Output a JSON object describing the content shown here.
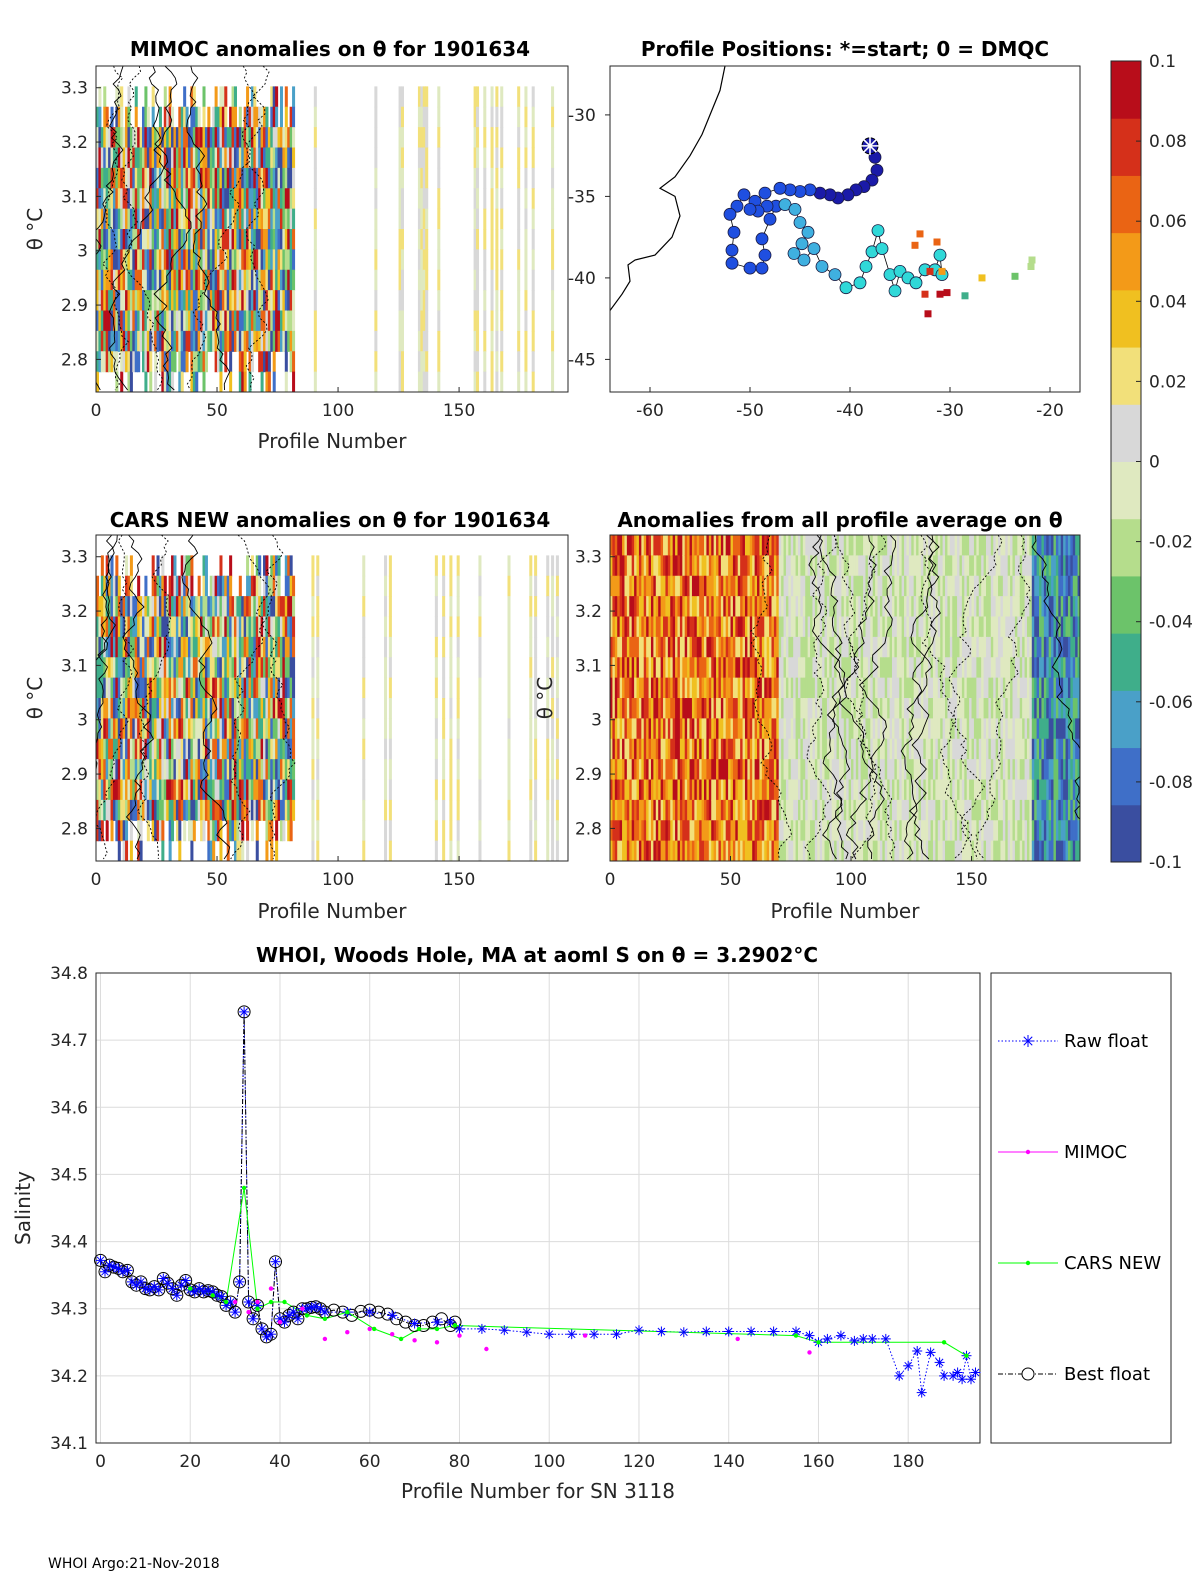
{
  "footer": "WHOI Argo:21-Nov-2018",
  "colors": {
    "raw": "#0000ff",
    "mimoc": "#ff00ff",
    "cars": "#00ff00",
    "best": "#000000",
    "ramp": [
      "#3a4ea0",
      "#3f6fc8",
      "#4aa0c8",
      "#3fae8a",
      "#6cc36a",
      "#b5dd8c",
      "#dfe9c0",
      "#d8d8d8",
      "#f2e07a",
      "#f0c020",
      "#f39a18",
      "#ea6414",
      "#d5301a",
      "#b80d1a"
    ]
  },
  "colorbar": {
    "ticks": [
      "0.1",
      "0.08",
      "0.06",
      "0.04",
      "0.02",
      "0",
      "-0.02",
      "-0.04",
      "-0.06",
      "-0.08",
      "-0.1"
    ]
  },
  "chart_data": [
    {
      "id": "mimoc",
      "type": "heatmap",
      "title": "MIMOC anomalies on θ  for 1901634",
      "xlabel": "Profile Number",
      "ylabel": "θ °C",
      "xlim": [
        0,
        195
      ],
      "ylim": [
        2.74,
        3.34
      ],
      "xticks": [
        "0",
        "50",
        "100",
        "150"
      ],
      "xtick_values": [
        0,
        50,
        100,
        150
      ],
      "yticks": [
        "3.3",
        "3.2",
        "3.1",
        "3",
        "2.9",
        "2.8"
      ],
      "ytick_values": [
        3.3,
        3.2,
        3.1,
        3.0,
        2.9,
        2.8
      ],
      "seed": 7
    },
    {
      "id": "positions",
      "type": "scatter",
      "title": "Profile Positions: *=start; 0 = DMQC",
      "xlim": [
        -64,
        -17
      ],
      "ylim": [
        -47,
        -27
      ],
      "xticks": [
        "-60",
        "-50",
        "-40",
        "-30",
        "-20"
      ],
      "xtick_values": [
        -60,
        -50,
        -40,
        -30,
        -20
      ],
      "yticks": [
        "-30",
        "-35",
        "-40",
        "-45"
      ],
      "ytick_values": [
        -30,
        -35,
        -40,
        -45
      ],
      "coast": [
        [
          -52.5,
          -27.0
        ],
        [
          -53.0,
          -28.5
        ],
        [
          -54.0,
          -30.0
        ],
        [
          -54.8,
          -31.2
        ],
        [
          -56.0,
          -32.5
        ],
        [
          -57.5,
          -33.8
        ],
        [
          -59.0,
          -34.5
        ],
        [
          -57.5,
          -35.0
        ],
        [
          -57.0,
          -36.2
        ],
        [
          -57.8,
          -37.5
        ],
        [
          -59.5,
          -38.6
        ],
        [
          -61.5,
          -38.9
        ],
        [
          -62.2,
          -39.2
        ],
        [
          -62.0,
          -40.2
        ],
        [
          -62.8,
          -41.0
        ],
        [
          -64.0,
          -42.0
        ]
      ],
      "start": [
        -38.0,
        -31.9
      ],
      "dmqc_track": [
        [
          -38.0,
          -31.9
        ],
        [
          -37.5,
          -32.6
        ],
        [
          -37.3,
          -33.4
        ],
        [
          -37.8,
          -34.0
        ],
        [
          -38.6,
          -34.4
        ],
        [
          -39.4,
          -34.6
        ],
        [
          -40.2,
          -34.9
        ],
        [
          -41.2,
          -35.1
        ],
        [
          -42.0,
          -34.9
        ],
        [
          -43.0,
          -34.8
        ],
        [
          -44.0,
          -34.6
        ],
        [
          -45.0,
          -34.7
        ],
        [
          -46.0,
          -34.6
        ],
        [
          -47.0,
          -34.5
        ],
        [
          -48.5,
          -34.8
        ],
        [
          -49.5,
          -35.3
        ],
        [
          -50.6,
          -34.9
        ],
        [
          -51.3,
          -35.6
        ],
        [
          -52.0,
          -36.1
        ],
        [
          -51.6,
          -37.2
        ],
        [
          -51.8,
          -38.3
        ],
        [
          -51.8,
          -39.1
        ],
        [
          -50.0,
          -39.4
        ],
        [
          -48.8,
          -39.4
        ],
        [
          -48.5,
          -38.6
        ],
        [
          -48.8,
          -37.6
        ],
        [
          -48.0,
          -36.4
        ],
        [
          -47.4,
          -35.6
        ],
        [
          -48.3,
          -35.6
        ],
        [
          -49.2,
          -35.9
        ],
        [
          -50.0,
          -35.8
        ]
      ],
      "dmqc_track2": [
        [
          -46.5,
          -35.5
        ],
        [
          -45.5,
          -35.8
        ],
        [
          -45.0,
          -36.6
        ],
        [
          -44.2,
          -37.2
        ],
        [
          -44.8,
          -37.9
        ],
        [
          -45.6,
          -38.5
        ],
        [
          -44.6,
          -38.9
        ],
        [
          -43.6,
          -38.2
        ],
        [
          -42.8,
          -39.3
        ],
        [
          -41.5,
          -39.8
        ],
        [
          -40.4,
          -40.6
        ],
        [
          -39.0,
          -40.3
        ],
        [
          -38.4,
          -39.3
        ],
        [
          -37.8,
          -38.4
        ],
        [
          -37.2,
          -37.1
        ],
        [
          -36.8,
          -38.2
        ],
        [
          -36.0,
          -39.8
        ],
        [
          -35.5,
          -40.8
        ],
        [
          -35.0,
          -39.6
        ],
        [
          -34.2,
          -40.0
        ],
        [
          -33.4,
          -40.3
        ],
        [
          -32.5,
          -39.5
        ],
        [
          -31.5,
          -39.5
        ],
        [
          -31.0,
          -38.6
        ],
        [
          -30.8,
          -39.8
        ]
      ],
      "raw_points": [
        [
          -33.0,
          -37.3
        ],
        [
          -31.3,
          -37.8
        ],
        [
          -33.5,
          -38.0
        ],
        [
          -32.0,
          -39.6
        ],
        [
          -30.8,
          -39.6
        ],
        [
          -32.5,
          -41.0
        ],
        [
          -31.0,
          -41.0
        ],
        [
          -30.3,
          -40.9
        ],
        [
          -32.2,
          -42.2
        ],
        [
          -28.5,
          -41.1
        ],
        [
          -26.8,
          -40.0
        ],
        [
          -23.5,
          -39.9
        ],
        [
          -21.9,
          -39.3
        ],
        [
          -21.8,
          -38.9
        ]
      ]
    },
    {
      "id": "cars",
      "type": "heatmap",
      "title": "CARS NEW anomalies on θ for 1901634",
      "xlabel": "Profile Number",
      "ylabel": "θ °C",
      "xlim": [
        0,
        195
      ],
      "ylim": [
        2.74,
        3.34
      ],
      "xticks": [
        "0",
        "50",
        "100",
        "150"
      ],
      "xtick_values": [
        0,
        50,
        100,
        150
      ],
      "yticks": [
        "3.3",
        "3.2",
        "3.1",
        "3",
        "2.9",
        "2.8"
      ],
      "ytick_values": [
        3.3,
        3.2,
        3.1,
        3.0,
        2.9,
        2.8
      ],
      "seed": 19
    },
    {
      "id": "allavg",
      "type": "heatmap",
      "title": "Anomalies from all profile average on θ",
      "xlabel": "Profile Number",
      "ylabel": "θ °C",
      "xlim": [
        0,
        195
      ],
      "ylim": [
        2.74,
        3.34
      ],
      "xticks": [
        "0",
        "50",
        "100",
        "150"
      ],
      "xtick_values": [
        0,
        50,
        100,
        150
      ],
      "yticks": [
        "3.3",
        "3.2",
        "3.1",
        "3",
        "2.9",
        "2.8"
      ],
      "ytick_values": [
        3.3,
        3.2,
        3.1,
        3.0,
        2.9,
        2.8
      ],
      "seed": 31
    },
    {
      "id": "salinity",
      "type": "line",
      "title": "WHOI, Woods Hole, MA at aoml S on θ = 3.2902°C",
      "xlabel": "Profile Number for SN 3118",
      "ylabel": "Salinity",
      "xlim": [
        -1,
        196
      ],
      "ylim": [
        34.1,
        34.8
      ],
      "xticks": [
        "0",
        "20",
        "40",
        "60",
        "80",
        "100",
        "120",
        "140",
        "160",
        "180"
      ],
      "xtick_values": [
        0,
        20,
        40,
        60,
        80,
        100,
        120,
        140,
        160,
        180
      ],
      "yticks": [
        "34.8",
        "34.7",
        "34.6",
        "34.5",
        "34.4",
        "34.3",
        "34.2",
        "34.1"
      ],
      "ytick_values": [
        34.8,
        34.7,
        34.6,
        34.5,
        34.4,
        34.3,
        34.2,
        34.1
      ],
      "legend": [
        "Raw float",
        "MIMOC",
        "CARS NEW",
        "Best float"
      ],
      "series": [
        {
          "name": "Raw float",
          "x": [
            0,
            1,
            2,
            3,
            4,
            5,
            6,
            7,
            8,
            9,
            10,
            11,
            12,
            13,
            14,
            15,
            16,
            17,
            18,
            19,
            20,
            21,
            22,
            23,
            24,
            25,
            26,
            27,
            28,
            29,
            30,
            31,
            32,
            33,
            34,
            35,
            36,
            37,
            38,
            39,
            40,
            41,
            42,
            43,
            44,
            45,
            46,
            47,
            48,
            49,
            50,
            55,
            60,
            65,
            70,
            75,
            78,
            80,
            85,
            90,
            95,
            100,
            105,
            110,
            115,
            120,
            125,
            130,
            135,
            140,
            145,
            150,
            155,
            158,
            160,
            162,
            165,
            168,
            170,
            172,
            175,
            178,
            180,
            182,
            183,
            185,
            187,
            188,
            190,
            191,
            192,
            193,
            194,
            195
          ],
          "values": [
            34.372,
            34.355,
            34.365,
            34.362,
            34.36,
            34.355,
            34.357,
            34.34,
            34.335,
            34.34,
            34.33,
            34.328,
            34.333,
            34.328,
            34.345,
            34.338,
            34.33,
            34.32,
            34.335,
            34.342,
            34.328,
            34.325,
            34.33,
            34.325,
            34.327,
            34.325,
            34.32,
            34.318,
            34.305,
            34.31,
            34.295,
            34.34,
            34.742,
            34.31,
            34.285,
            34.305,
            34.27,
            34.258,
            34.262,
            34.37,
            34.285,
            34.28,
            34.29,
            34.295,
            34.285,
            34.3,
            34.3,
            34.302,
            34.303,
            34.3,
            34.295,
            34.295,
            34.295,
            34.29,
            34.278,
            34.28,
            34.28,
            34.27,
            34.27,
            34.268,
            34.265,
            34.262,
            34.262,
            34.262,
            34.262,
            34.268,
            34.266,
            34.265,
            34.266,
            34.266,
            34.266,
            34.266,
            34.266,
            34.26,
            34.25,
            34.255,
            34.26,
            34.252,
            34.255,
            34.255,
            34.255,
            34.2,
            34.215,
            34.237,
            34.175,
            34.235,
            34.22,
            34.2,
            34.2,
            34.205,
            34.195,
            34.23,
            34.195,
            34.205
          ]
        },
        {
          "name": "MIMOC",
          "x": [
            25,
            30,
            33,
            35,
            38,
            40,
            45,
            50,
            55,
            60,
            65,
            70,
            75,
            80,
            86,
            108,
            142,
            158
          ],
          "values": [
            34.32,
            34.31,
            34.295,
            34.31,
            34.33,
            34.28,
            34.3,
            34.255,
            34.265,
            34.27,
            34.262,
            34.253,
            34.25,
            34.26,
            34.24,
            34.26,
            34.255,
            34.235
          ]
        },
        {
          "name": "CARS NEW",
          "x": [
            20,
            25,
            28,
            32,
            35,
            38,
            41,
            46,
            50,
            55,
            61,
            67,
            71,
            75,
            79,
            155,
            160,
            188,
            193
          ],
          "values": [
            34.33,
            34.32,
            34.31,
            34.48,
            34.3,
            34.31,
            34.31,
            34.29,
            34.285,
            34.295,
            34.27,
            34.255,
            34.27,
            34.27,
            34.275,
            34.26,
            34.25,
            34.25,
            34.23
          ]
        },
        {
          "name": "Best float",
          "x": [
            0,
            1,
            2,
            3,
            4,
            5,
            6,
            7,
            8,
            9,
            10,
            11,
            12,
            13,
            14,
            15,
            16,
            17,
            18,
            19,
            20,
            21,
            22,
            23,
            24,
            25,
            26,
            27,
            28,
            29,
            30,
            31,
            32,
            33,
            34,
            35,
            36,
            37,
            38,
            39,
            40,
            41,
            42,
            43,
            44,
            45,
            46,
            47,
            48,
            49,
            50,
            52,
            54,
            56,
            58,
            60,
            62,
            64,
            66,
            68,
            70,
            72,
            74,
            76,
            78,
            79
          ],
          "values": [
            34.372,
            34.355,
            34.365,
            34.362,
            34.36,
            34.355,
            34.357,
            34.34,
            34.335,
            34.34,
            34.33,
            34.328,
            34.333,
            34.328,
            34.345,
            34.338,
            34.33,
            34.32,
            34.335,
            34.342,
            34.328,
            34.325,
            34.33,
            34.325,
            34.327,
            34.325,
            34.32,
            34.318,
            34.305,
            34.31,
            34.295,
            34.34,
            34.742,
            34.31,
            34.285,
            34.305,
            34.27,
            34.258,
            34.262,
            34.37,
            34.285,
            34.28,
            34.29,
            34.295,
            34.285,
            34.3,
            34.3,
            34.302,
            34.303,
            34.3,
            34.295,
            34.298,
            34.295,
            34.29,
            34.296,
            34.298,
            34.295,
            34.292,
            34.285,
            34.28,
            34.275,
            34.275,
            34.28,
            34.285,
            34.275,
            34.28
          ]
        }
      ]
    }
  ]
}
